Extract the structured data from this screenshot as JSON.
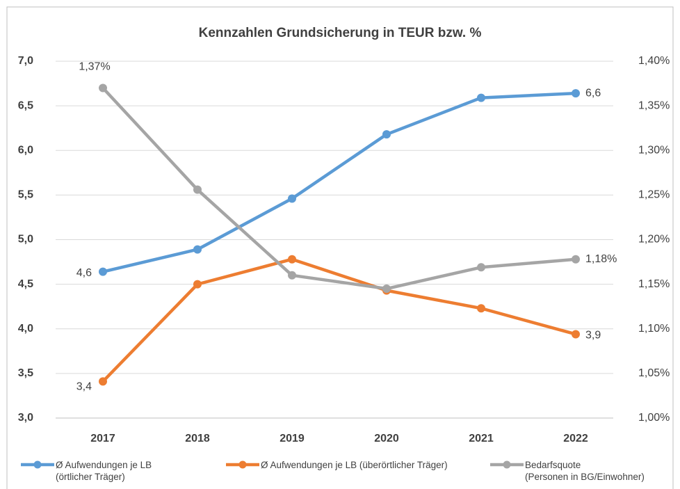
{
  "chart_data": {
    "type": "line",
    "title": "Kennzahlen Grundsicherung in TEUR bzw. %",
    "categories": [
      "2017",
      "2018",
      "2019",
      "2020",
      "2021",
      "2022"
    ],
    "series": [
      {
        "name": "Ø Aufwendungen je LB\n(örtlicher Träger)",
        "color": "#5b9bd5",
        "values": [
          4.64,
          4.89,
          5.46,
          6.18,
          6.59,
          6.64
        ],
        "value_labels": [
          "4,6",
          null,
          null,
          null,
          null,
          "6,6"
        ]
      },
      {
        "name": "Ø Aufwendungen je LB (überörtlicher Träger)",
        "color": "#ed7d31",
        "values": [
          3.41,
          4.5,
          4.78,
          4.43,
          4.23,
          3.94
        ],
        "value_labels": [
          "3,4",
          null,
          null,
          null,
          null,
          "3,9"
        ]
      },
      {
        "name": "Bedarfsquote\n(Personen in BG/Einwohner)",
        "color": "#a5a5a5",
        "axis": "y2",
        "values": [
          1.37,
          1.256,
          1.16,
          1.145,
          1.169,
          1.178
        ],
        "value_labels": [
          "1,37%",
          null,
          null,
          null,
          null,
          "1,18%"
        ]
      }
    ],
    "ylim": [
      3.0,
      7.0
    ],
    "yticks": [
      {
        "value": 3.0,
        "label": "3,0"
      },
      {
        "value": 3.5,
        "label": "3,5"
      },
      {
        "value": 4.0,
        "label": "4,0"
      },
      {
        "value": 4.5,
        "label": "4,5"
      },
      {
        "value": 5.0,
        "label": "5,0"
      },
      {
        "value": 5.5,
        "label": "5,5"
      },
      {
        "value": 6.0,
        "label": "6,0"
      },
      {
        "value": 6.5,
        "label": "6,5"
      },
      {
        "value": 7.0,
        "label": "7,0"
      }
    ],
    "y2lim": [
      1.0,
      1.4
    ],
    "y2ticks": [
      {
        "value": 1.0,
        "label": "1,00%"
      },
      {
        "value": 1.05,
        "label": "1,05%"
      },
      {
        "value": 1.1,
        "label": "1,10%"
      },
      {
        "value": 1.15,
        "label": "1,15%"
      },
      {
        "value": 1.2,
        "label": "1,20%"
      },
      {
        "value": 1.25,
        "label": "1,25%"
      },
      {
        "value": 1.3,
        "label": "1,30%"
      },
      {
        "value": 1.35,
        "label": "1,35%"
      },
      {
        "value": 1.4,
        "label": "1,40%"
      }
    ],
    "grid": true,
    "legend": "bottom"
  }
}
